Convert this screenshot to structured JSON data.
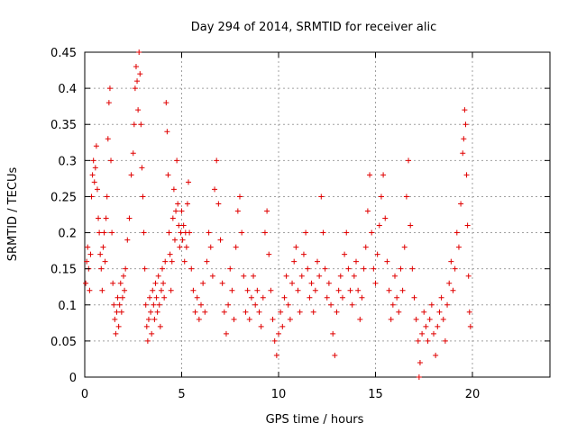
{
  "chart_data": {
    "type": "scatter",
    "title": "Day 294 of 2014, SRMTID for receiver alic",
    "xlabel": "GPS time / hours",
    "ylabel": "SRMTID / TECUs",
    "xlim": [
      0,
      24
    ],
    "ylim": [
      0,
      0.45
    ],
    "xticks": [
      0,
      5,
      10,
      15,
      20
    ],
    "xtick_labels": [
      "0",
      "5",
      "10",
      "15",
      "20"
    ],
    "yticks": [
      0,
      0.05,
      0.1,
      0.15,
      0.2,
      0.25,
      0.3,
      0.35,
      0.4,
      0.45
    ],
    "ytick_labels": [
      "0",
      "0.05",
      "0.1",
      "0.15",
      "0.2",
      "0.25",
      "0.3",
      "0.35",
      "0.4",
      "0.45"
    ],
    "grid": true,
    "legend": "none",
    "marker": "plus",
    "color": "#e00000",
    "series": [
      {
        "values": [
          [
            0.05,
            0.13
          ],
          [
            0.1,
            0.16
          ],
          [
            0.15,
            0.18
          ],
          [
            0.2,
            0.15
          ],
          [
            0.25,
            0.12
          ],
          [
            0.3,
            0.17
          ],
          [
            0.35,
            0.25
          ],
          [
            0.4,
            0.28
          ],
          [
            0.45,
            0.3
          ],
          [
            0.5,
            0.27
          ],
          [
            0.55,
            0.29
          ],
          [
            0.6,
            0.32
          ],
          [
            0.65,
            0.26
          ],
          [
            0.7,
            0.22
          ],
          [
            0.75,
            0.2
          ],
          [
            0.8,
            0.17
          ],
          [
            0.85,
            0.15
          ],
          [
            0.9,
            0.12
          ],
          [
            0.95,
            0.18
          ],
          [
            1.0,
            0.2
          ],
          [
            1.05,
            0.16
          ],
          [
            1.1,
            0.22
          ],
          [
            1.15,
            0.25
          ],
          [
            1.2,
            0.33
          ],
          [
            1.25,
            0.38
          ],
          [
            1.3,
            0.4
          ],
          [
            1.35,
            0.3
          ],
          [
            1.4,
            0.2
          ],
          [
            1.45,
            0.13
          ],
          [
            1.5,
            0.1
          ],
          [
            1.55,
            0.08
          ],
          [
            1.6,
            0.06
          ],
          [
            1.65,
            0.09
          ],
          [
            1.7,
            0.11
          ],
          [
            1.75,
            0.07
          ],
          [
            1.8,
            0.1
          ],
          [
            1.85,
            0.13
          ],
          [
            1.9,
            0.09
          ],
          [
            1.95,
            0.11
          ],
          [
            2.0,
            0.14
          ],
          [
            2.05,
            0.12
          ],
          [
            2.1,
            0.15
          ],
          [
            2.2,
            0.19
          ],
          [
            2.3,
            0.22
          ],
          [
            2.4,
            0.28
          ],
          [
            2.5,
            0.31
          ],
          [
            2.55,
            0.35
          ],
          [
            2.6,
            0.4
          ],
          [
            2.65,
            0.43
          ],
          [
            2.7,
            0.41
          ],
          [
            2.75,
            0.37
          ],
          [
            2.8,
            0.45
          ],
          [
            2.85,
            0.42
          ],
          [
            2.9,
            0.35
          ],
          [
            2.95,
            0.29
          ],
          [
            3.0,
            0.25
          ],
          [
            3.05,
            0.2
          ],
          [
            3.1,
            0.15
          ],
          [
            3.15,
            0.1
          ],
          [
            3.2,
            0.07
          ],
          [
            3.25,
            0.05
          ],
          [
            3.3,
            0.08
          ],
          [
            3.35,
            0.11
          ],
          [
            3.4,
            0.09
          ],
          [
            3.45,
            0.06
          ],
          [
            3.5,
            0.12
          ],
          [
            3.55,
            0.1
          ],
          [
            3.6,
            0.08
          ],
          [
            3.65,
            0.13
          ],
          [
            3.7,
            0.11
          ],
          [
            3.75,
            0.09
          ],
          [
            3.8,
            0.14
          ],
          [
            3.85,
            0.1
          ],
          [
            3.9,
            0.07
          ],
          [
            3.95,
            0.12
          ],
          [
            4.0,
            0.15
          ],
          [
            4.05,
            0.13
          ],
          [
            4.1,
            0.11
          ],
          [
            4.15,
            0.16
          ],
          [
            4.2,
            0.38
          ],
          [
            4.25,
            0.34
          ],
          [
            4.3,
            0.28
          ],
          [
            4.35,
            0.2
          ],
          [
            4.4,
            0.17
          ],
          [
            4.45,
            0.12
          ],
          [
            4.5,
            0.16
          ],
          [
            4.55,
            0.22
          ],
          [
            4.6,
            0.26
          ],
          [
            4.65,
            0.19
          ],
          [
            4.7,
            0.23
          ],
          [
            4.75,
            0.3
          ],
          [
            4.8,
            0.24
          ],
          [
            4.85,
            0.21
          ],
          [
            4.9,
            0.18
          ],
          [
            4.95,
            0.2
          ],
          [
            5.0,
            0.23
          ],
          [
            5.05,
            0.19
          ],
          [
            5.1,
            0.21
          ],
          [
            5.15,
            0.16
          ],
          [
            5.2,
            0.2
          ],
          [
            5.25,
            0.18
          ],
          [
            5.3,
            0.24
          ],
          [
            5.35,
            0.27
          ],
          [
            5.4,
            0.2
          ],
          [
            5.5,
            0.15
          ],
          [
            5.6,
            0.12
          ],
          [
            5.7,
            0.09
          ],
          [
            5.8,
            0.11
          ],
          [
            5.9,
            0.08
          ],
          [
            6.0,
            0.1
          ],
          [
            6.1,
            0.13
          ],
          [
            6.2,
            0.09
          ],
          [
            6.3,
            0.16
          ],
          [
            6.4,
            0.2
          ],
          [
            6.5,
            0.18
          ],
          [
            6.6,
            0.14
          ],
          [
            6.7,
            0.26
          ],
          [
            6.8,
            0.3
          ],
          [
            6.9,
            0.24
          ],
          [
            7.0,
            0.19
          ],
          [
            7.1,
            0.13
          ],
          [
            7.2,
            0.09
          ],
          [
            7.3,
            0.06
          ],
          [
            7.4,
            0.1
          ],
          [
            7.5,
            0.15
          ],
          [
            7.6,
            0.12
          ],
          [
            7.7,
            0.08
          ],
          [
            7.8,
            0.18
          ],
          [
            7.9,
            0.23
          ],
          [
            8.0,
            0.25
          ],
          [
            8.1,
            0.2
          ],
          [
            8.2,
            0.14
          ],
          [
            8.3,
            0.09
          ],
          [
            8.4,
            0.12
          ],
          [
            8.5,
            0.08
          ],
          [
            8.6,
            0.11
          ],
          [
            8.7,
            0.14
          ],
          [
            8.8,
            0.1
          ],
          [
            8.9,
            0.12
          ],
          [
            9.0,
            0.09
          ],
          [
            9.1,
            0.07
          ],
          [
            9.2,
            0.11
          ],
          [
            9.3,
            0.2
          ],
          [
            9.4,
            0.23
          ],
          [
            9.5,
            0.17
          ],
          [
            9.6,
            0.12
          ],
          [
            9.7,
            0.08
          ],
          [
            9.8,
            0.05
          ],
          [
            9.9,
            0.03
          ],
          [
            10.0,
            0.06
          ],
          [
            10.1,
            0.09
          ],
          [
            10.2,
            0.07
          ],
          [
            10.3,
            0.11
          ],
          [
            10.4,
            0.14
          ],
          [
            10.5,
            0.1
          ],
          [
            10.6,
            0.08
          ],
          [
            10.7,
            0.13
          ],
          [
            10.8,
            0.16
          ],
          [
            10.9,
            0.18
          ],
          [
            11.0,
            0.12
          ],
          [
            11.1,
            0.09
          ],
          [
            11.2,
            0.14
          ],
          [
            11.3,
            0.17
          ],
          [
            11.4,
            0.2
          ],
          [
            11.5,
            0.15
          ],
          [
            11.6,
            0.11
          ],
          [
            11.7,
            0.13
          ],
          [
            11.8,
            0.09
          ],
          [
            11.9,
            0.12
          ],
          [
            12.0,
            0.16
          ],
          [
            12.1,
            0.14
          ],
          [
            12.2,
            0.25
          ],
          [
            12.3,
            0.2
          ],
          [
            12.4,
            0.15
          ],
          [
            12.5,
            0.11
          ],
          [
            12.6,
            0.13
          ],
          [
            12.7,
            0.1
          ],
          [
            12.8,
            0.06
          ],
          [
            12.9,
            0.03
          ],
          [
            13.0,
            0.09
          ],
          [
            13.1,
            0.12
          ],
          [
            13.2,
            0.14
          ],
          [
            13.3,
            0.11
          ],
          [
            13.4,
            0.17
          ],
          [
            13.5,
            0.2
          ],
          [
            13.6,
            0.15
          ],
          [
            13.7,
            0.12
          ],
          [
            13.8,
            0.1
          ],
          [
            13.9,
            0.14
          ],
          [
            14.0,
            0.16
          ],
          [
            14.1,
            0.12
          ],
          [
            14.2,
            0.08
          ],
          [
            14.3,
            0.11
          ],
          [
            14.4,
            0.15
          ],
          [
            14.5,
            0.18
          ],
          [
            14.6,
            0.23
          ],
          [
            14.7,
            0.28
          ],
          [
            14.8,
            0.2
          ],
          [
            14.9,
            0.15
          ],
          [
            15.0,
            0.13
          ],
          [
            15.1,
            0.17
          ],
          [
            15.2,
            0.21
          ],
          [
            15.3,
            0.25
          ],
          [
            15.4,
            0.28
          ],
          [
            15.5,
            0.22
          ],
          [
            15.6,
            0.16
          ],
          [
            15.7,
            0.12
          ],
          [
            15.8,
            0.08
          ],
          [
            15.9,
            0.1
          ],
          [
            16.0,
            0.14
          ],
          [
            16.1,
            0.11
          ],
          [
            16.2,
            0.09
          ],
          [
            16.3,
            0.15
          ],
          [
            16.4,
            0.12
          ],
          [
            16.5,
            0.18
          ],
          [
            16.6,
            0.25
          ],
          [
            16.7,
            0.3
          ],
          [
            16.8,
            0.21
          ],
          [
            16.9,
            0.15
          ],
          [
            17.0,
            0.11
          ],
          [
            17.1,
            0.08
          ],
          [
            17.2,
            0.05
          ],
          [
            17.25,
            0.0
          ],
          [
            17.3,
            0.02
          ],
          [
            17.4,
            0.06
          ],
          [
            17.5,
            0.09
          ],
          [
            17.6,
            0.07
          ],
          [
            17.7,
            0.05
          ],
          [
            17.8,
            0.08
          ],
          [
            17.9,
            0.1
          ],
          [
            18.0,
            0.06
          ],
          [
            18.1,
            0.03
          ],
          [
            18.2,
            0.07
          ],
          [
            18.3,
            0.09
          ],
          [
            18.4,
            0.11
          ],
          [
            18.5,
            0.08
          ],
          [
            18.6,
            0.05
          ],
          [
            18.7,
            0.1
          ],
          [
            18.8,
            0.13
          ],
          [
            18.9,
            0.16
          ],
          [
            19.0,
            0.12
          ],
          [
            19.1,
            0.15
          ],
          [
            19.2,
            0.2
          ],
          [
            19.3,
            0.18
          ],
          [
            19.4,
            0.24
          ],
          [
            19.5,
            0.31
          ],
          [
            19.55,
            0.33
          ],
          [
            19.6,
            0.37
          ],
          [
            19.65,
            0.35
          ],
          [
            19.7,
            0.28
          ],
          [
            19.75,
            0.21
          ],
          [
            19.8,
            0.14
          ],
          [
            19.85,
            0.09
          ],
          [
            19.9,
            0.07
          ]
        ]
      }
    ]
  }
}
